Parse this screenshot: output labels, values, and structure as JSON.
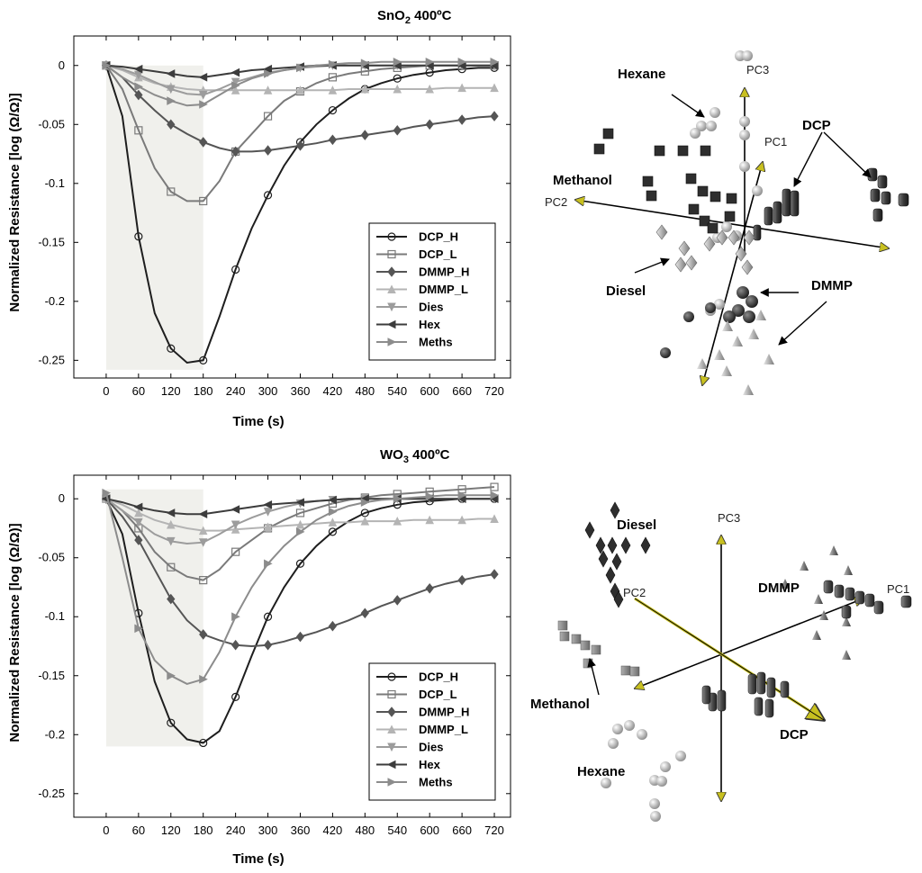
{
  "colors": {
    "DCP_H": "#1e1e1e",
    "DCP_L": "#7a7a7a",
    "DMMP_H": "#555555",
    "DMMP_L": "#b4b4b4",
    "Dies": "#9c9c9c",
    "Hex": "#3c3c3c",
    "Meths": "#8c8c8c",
    "axis_arrow": "#c8c020",
    "shade": "#f0f0ec"
  },
  "chart_data": [
    {
      "type": "line",
      "title_main": "SnO",
      "title_sub": "2",
      "title_rest": " 400ºC",
      "xlabel": "Time (s)",
      "ylabel": "Normalized Resistance [log (Ω/Ω)]",
      "x_ticks": [
        "0",
        "60",
        "120",
        "180",
        "240",
        "300",
        "360",
        "420",
        "480",
        "540",
        "600",
        "660",
        "720"
      ],
      "y_ticks": [
        "0",
        "-0.05",
        "-0.1",
        "-0.15",
        "-0.2",
        "-0.25"
      ],
      "y_tick_values": [
        0,
        -0.05,
        -0.1,
        -0.15,
        -0.2,
        -0.25
      ],
      "xlim": [
        -60,
        750
      ],
      "ylim": [
        -0.265,
        0.025
      ],
      "shade_x": [
        0,
        180
      ],
      "shade_y": [
        -0.258,
        0
      ],
      "series": [
        {
          "name": "DCP_H",
          "marker": "circle",
          "x": [
            0,
            30,
            60,
            90,
            120,
            150,
            180,
            210,
            240,
            270,
            300,
            330,
            360,
            390,
            420,
            450,
            480,
            510,
            540,
            570,
            600,
            630,
            660,
            690,
            720
          ],
          "values": [
            0,
            -0.043,
            -0.145,
            -0.21,
            -0.24,
            -0.252,
            -0.25,
            -0.213,
            -0.173,
            -0.138,
            -0.11,
            -0.085,
            -0.065,
            -0.05,
            -0.038,
            -0.028,
            -0.02,
            -0.015,
            -0.011,
            -0.008,
            -0.006,
            -0.004,
            -0.003,
            -0.002,
            -0.002
          ]
        },
        {
          "name": "DCP_L",
          "marker": "square",
          "x": [
            0,
            30,
            60,
            90,
            120,
            150,
            180,
            210,
            240,
            270,
            300,
            330,
            360,
            390,
            420,
            450,
            480,
            510,
            540,
            570,
            600,
            630,
            660,
            690,
            720
          ],
          "values": [
            0,
            -0.02,
            -0.055,
            -0.087,
            -0.107,
            -0.115,
            -0.115,
            -0.098,
            -0.073,
            -0.058,
            -0.043,
            -0.03,
            -0.022,
            -0.015,
            -0.01,
            -0.007,
            -0.005,
            -0.003,
            -0.002,
            -0.001,
            0,
            0,
            0,
            0,
            0
          ]
        },
        {
          "name": "DMMP_H",
          "marker": "diamond",
          "x": [
            0,
            30,
            60,
            90,
            120,
            150,
            180,
            210,
            240,
            270,
            300,
            330,
            360,
            390,
            420,
            450,
            480,
            510,
            540,
            570,
            600,
            630,
            660,
            690,
            720
          ],
          "values": [
            0,
            -0.01,
            -0.025,
            -0.038,
            -0.05,
            -0.058,
            -0.065,
            -0.07,
            -0.073,
            -0.073,
            -0.072,
            -0.07,
            -0.068,
            -0.066,
            -0.063,
            -0.061,
            -0.059,
            -0.057,
            -0.055,
            -0.052,
            -0.05,
            -0.048,
            -0.046,
            -0.044,
            -0.043
          ]
        },
        {
          "name": "DMMP_L",
          "marker": "triangle-up",
          "x": [
            0,
            30,
            60,
            90,
            120,
            150,
            180,
            210,
            240,
            270,
            300,
            330,
            360,
            390,
            420,
            450,
            480,
            510,
            540,
            570,
            600,
            630,
            660,
            690,
            720
          ],
          "values": [
            0,
            -0.004,
            -0.01,
            -0.015,
            -0.018,
            -0.02,
            -0.021,
            -0.021,
            -0.021,
            -0.021,
            -0.021,
            -0.021,
            -0.021,
            -0.021,
            -0.021,
            -0.02,
            -0.02,
            -0.02,
            -0.02,
            -0.02,
            -0.02,
            -0.019,
            -0.019,
            -0.019,
            -0.019
          ]
        },
        {
          "name": "Dies",
          "marker": "triangle-down",
          "x": [
            0,
            30,
            60,
            90,
            120,
            150,
            180,
            210,
            240,
            270,
            300,
            330,
            360,
            390,
            420,
            450,
            480,
            510,
            540,
            570,
            600,
            630,
            660,
            690,
            720
          ],
          "values": [
            0,
            -0.003,
            -0.008,
            -0.014,
            -0.02,
            -0.024,
            -0.025,
            -0.02,
            -0.014,
            -0.01,
            -0.006,
            -0.004,
            -0.002,
            -0.001,
            0,
            0,
            0,
            0,
            0,
            0,
            0,
            0,
            0,
            0,
            0
          ]
        },
        {
          "name": "Hex",
          "marker": "triangle-left",
          "x": [
            0,
            30,
            60,
            90,
            120,
            150,
            180,
            210,
            240,
            270,
            300,
            330,
            360,
            390,
            420,
            450,
            480,
            510,
            540,
            570,
            600,
            630,
            660,
            690,
            720
          ],
          "values": [
            0,
            -0.001,
            -0.003,
            -0.005,
            -0.007,
            -0.009,
            -0.01,
            -0.008,
            -0.006,
            -0.004,
            -0.003,
            -0.002,
            -0.001,
            0,
            0,
            0,
            0,
            0,
            0,
            0,
            0,
            0,
            0,
            0,
            0
          ]
        },
        {
          "name": "Meths",
          "marker": "triangle-right",
          "x": [
            0,
            30,
            60,
            90,
            120,
            150,
            180,
            210,
            240,
            270,
            300,
            330,
            360,
            390,
            420,
            450,
            480,
            510,
            540,
            570,
            600,
            630,
            660,
            690,
            720
          ],
          "values": [
            0,
            -0.01,
            -0.018,
            -0.025,
            -0.03,
            -0.034,
            -0.033,
            -0.025,
            -0.017,
            -0.011,
            -0.007,
            -0.004,
            -0.002,
            0,
            0.001,
            0.002,
            0.002,
            0.003,
            0.003,
            0.003,
            0.003,
            0.003,
            0.003,
            0.003,
            0.003
          ]
        }
      ],
      "legend": [
        "DCP_H",
        "DCP_L",
        "DMMP_H",
        "DMMP_L",
        "Dies",
        "Hex",
        "Meths"
      ],
      "legend_position": "bottom-right"
    },
    {
      "type": "line",
      "title_main": "WO",
      "title_sub": "3",
      "title_rest": " 400ºC",
      "xlabel": "Time (s)",
      "ylabel": "Normalized Resistance [log (Ω/Ω)]",
      "x_ticks": [
        "0",
        "60",
        "120",
        "180",
        "240",
        "300",
        "360",
        "420",
        "480",
        "540",
        "600",
        "660",
        "720"
      ],
      "y_ticks": [
        "0",
        "-0.05",
        "-0.1",
        "-0.15",
        "-0.2",
        "-0.25"
      ],
      "y_tick_values": [
        0,
        -0.05,
        -0.1,
        -0.15,
        -0.2,
        -0.25
      ],
      "xlim": [
        -60,
        750
      ],
      "ylim": [
        -0.27,
        0.02
      ],
      "shade_x": [
        0,
        180
      ],
      "shade_y": [
        -0.21,
        0.008
      ],
      "series": [
        {
          "name": "DCP_H",
          "marker": "circle",
          "x": [
            0,
            30,
            60,
            90,
            120,
            150,
            180,
            210,
            240,
            270,
            300,
            330,
            360,
            390,
            420,
            450,
            480,
            510,
            540,
            570,
            600,
            630,
            660,
            690,
            720
          ],
          "values": [
            0,
            -0.03,
            -0.097,
            -0.155,
            -0.19,
            -0.204,
            -0.207,
            -0.197,
            -0.168,
            -0.133,
            -0.1,
            -0.075,
            -0.055,
            -0.04,
            -0.028,
            -0.019,
            -0.012,
            -0.008,
            -0.005,
            -0.003,
            -0.002,
            -0.001,
            0,
            0,
            0
          ]
        },
        {
          "name": "DCP_L",
          "marker": "square",
          "x": [
            0,
            30,
            60,
            90,
            120,
            150,
            180,
            210,
            240,
            270,
            300,
            330,
            360,
            390,
            420,
            450,
            480,
            510,
            540,
            570,
            600,
            630,
            660,
            690,
            720
          ],
          "values": [
            0,
            -0.01,
            -0.025,
            -0.045,
            -0.058,
            -0.066,
            -0.069,
            -0.06,
            -0.045,
            -0.035,
            -0.025,
            -0.018,
            -0.012,
            -0.008,
            -0.004,
            -0.001,
            0.001,
            0.003,
            0.004,
            0.005,
            0.006,
            0.007,
            0.008,
            0.009,
            0.01
          ]
        },
        {
          "name": "DMMP_H",
          "marker": "diamond",
          "x": [
            0,
            30,
            60,
            90,
            120,
            150,
            180,
            210,
            240,
            270,
            300,
            330,
            360,
            390,
            420,
            450,
            480,
            510,
            540,
            570,
            600,
            630,
            660,
            690,
            720
          ],
          "values": [
            0,
            -0.015,
            -0.035,
            -0.06,
            -0.085,
            -0.103,
            -0.115,
            -0.12,
            -0.124,
            -0.125,
            -0.124,
            -0.121,
            -0.117,
            -0.113,
            -0.108,
            -0.103,
            -0.097,
            -0.091,
            -0.086,
            -0.081,
            -0.076,
            -0.072,
            -0.069,
            -0.066,
            -0.064
          ]
        },
        {
          "name": "DMMP_L",
          "marker": "triangle-up",
          "x": [
            0,
            30,
            60,
            90,
            120,
            150,
            180,
            210,
            240,
            270,
            300,
            330,
            360,
            390,
            420,
            450,
            480,
            510,
            540,
            570,
            600,
            630,
            660,
            690,
            720
          ],
          "values": [
            0,
            -0.005,
            -0.012,
            -0.018,
            -0.022,
            -0.025,
            -0.027,
            -0.027,
            -0.026,
            -0.025,
            -0.024,
            -0.023,
            -0.022,
            -0.021,
            -0.02,
            -0.02,
            -0.019,
            -0.019,
            -0.019,
            -0.018,
            -0.018,
            -0.018,
            -0.018,
            -0.017,
            -0.017
          ]
        },
        {
          "name": "Dies",
          "marker": "triangle-down",
          "x": [
            0,
            30,
            60,
            90,
            120,
            150,
            180,
            210,
            240,
            270,
            300,
            330,
            360,
            390,
            420,
            450,
            480,
            510,
            540,
            570,
            600,
            630,
            660,
            690,
            720
          ],
          "values": [
            0,
            -0.01,
            -0.02,
            -0.03,
            -0.036,
            -0.038,
            -0.037,
            -0.03,
            -0.022,
            -0.016,
            -0.011,
            -0.007,
            -0.004,
            -0.002,
            -0.001,
            0,
            0,
            0,
            0,
            0,
            0,
            0,
            0,
            0,
            0
          ]
        },
        {
          "name": "Hex",
          "marker": "triangle-left",
          "x": [
            0,
            30,
            60,
            90,
            120,
            150,
            180,
            210,
            240,
            270,
            300,
            330,
            360,
            390,
            420,
            450,
            480,
            510,
            540,
            570,
            600,
            630,
            660,
            690,
            720
          ],
          "values": [
            0,
            -0.003,
            -0.007,
            -0.01,
            -0.012,
            -0.013,
            -0.013,
            -0.011,
            -0.009,
            -0.007,
            -0.005,
            -0.004,
            -0.003,
            -0.002,
            -0.001,
            0,
            0,
            0,
            0,
            0,
            0,
            0,
            0,
            0,
            0
          ]
        },
        {
          "name": "Meths",
          "marker": "triangle-right",
          "x": [
            0,
            30,
            60,
            90,
            120,
            150,
            180,
            210,
            240,
            270,
            300,
            330,
            360,
            390,
            420,
            450,
            480,
            510,
            540,
            570,
            600,
            630,
            660,
            690,
            720
          ],
          "values": [
            0.005,
            -0.05,
            -0.11,
            -0.137,
            -0.15,
            -0.157,
            -0.153,
            -0.13,
            -0.1,
            -0.075,
            -0.055,
            -0.04,
            -0.028,
            -0.018,
            -0.011,
            -0.006,
            -0.003,
            -0.001,
            0,
            0.001,
            0.002,
            0.003,
            0.003,
            0.003,
            0.003
          ]
        }
      ],
      "legend": [
        "DCP_H",
        "DCP_L",
        "DMMP_H",
        "DMMP_L",
        "Dies",
        "Hex",
        "Meths"
      ],
      "legend_position": "bottom-right"
    }
  ],
  "pca": [
    {
      "axes": [
        "PC3",
        "PC1",
        "PC2"
      ],
      "clusters": [
        "Hexane",
        "DCP",
        "Methanol",
        "Diesel",
        "DMMP"
      ]
    },
    {
      "axes": [
        "PC3",
        "PC2",
        "PC1"
      ],
      "clusters": [
        "Diesel",
        "DMMP",
        "Methanol",
        "DCP",
        "Hexane"
      ]
    }
  ]
}
